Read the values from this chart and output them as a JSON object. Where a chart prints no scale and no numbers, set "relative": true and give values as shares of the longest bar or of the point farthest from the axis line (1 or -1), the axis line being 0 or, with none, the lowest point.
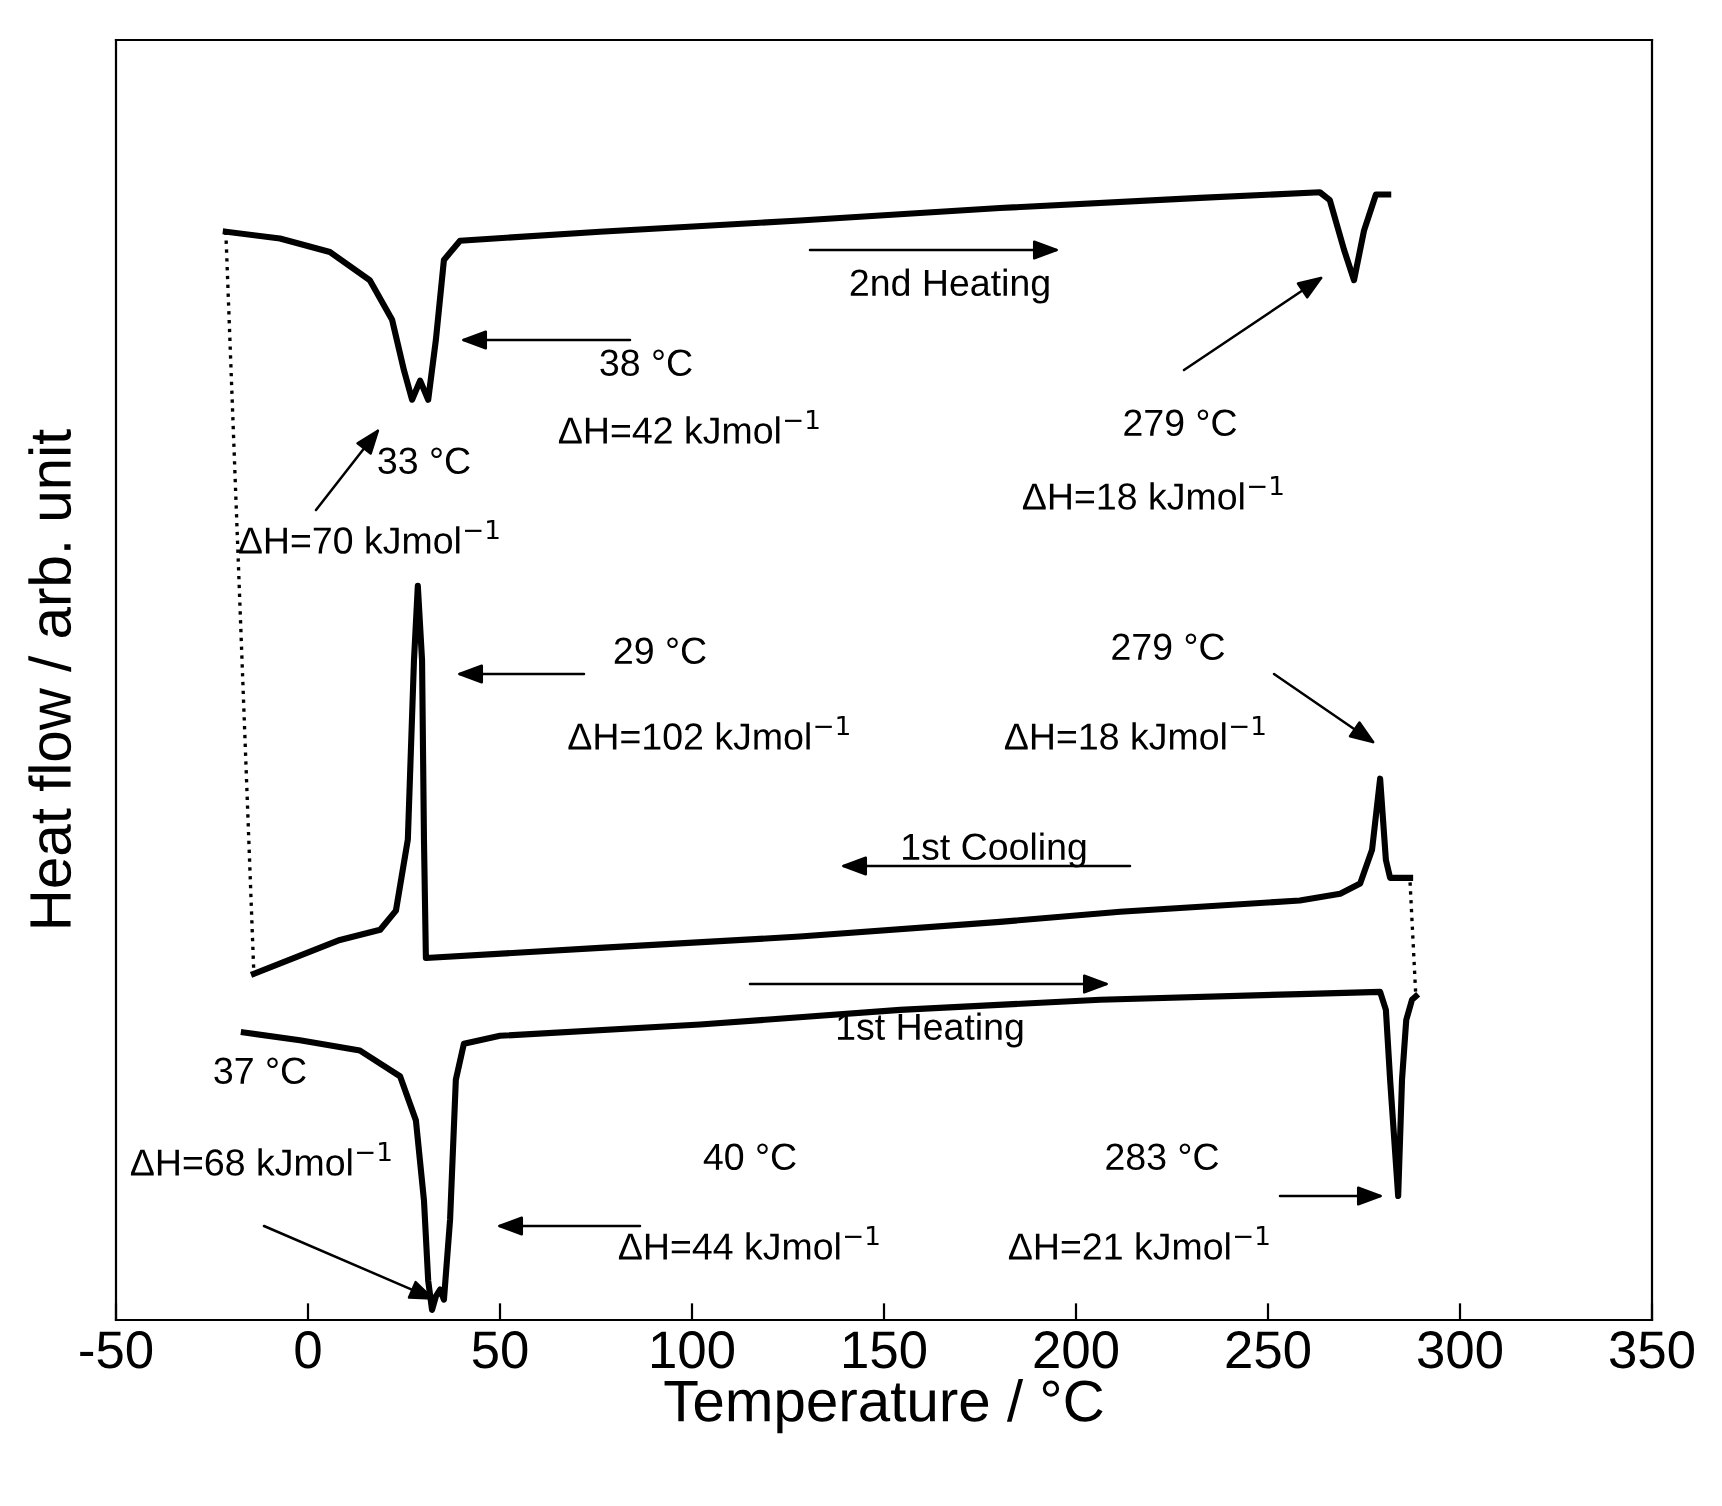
{
  "chart_data": {
    "type": "line",
    "relative": true,
    "xlabel": "Temperature / °C",
    "ylabel": "Heat flow / arb. unit",
    "xlim": [
      -50,
      350
    ],
    "xticks": [
      -50,
      0,
      50,
      100,
      150,
      200,
      250,
      300,
      350
    ],
    "tick_labels": "x",
    "series": [
      {
        "color": "#000000",
        "line_style": "solid",
        "x": [
          -21.4,
          -7.3,
          5.7,
          16.1,
          21.9,
          25.0,
          27.1,
          29.2,
          31.3,
          33.3,
          35.4,
          39.6,
          76.0,
          128.1,
          180.2,
          232.3,
          263.5,
          266.1,
          269.8,
          272.4,
          275.0,
          278.1,
          281.3
        ],
        "values": [
          0.965,
          0.959,
          0.947,
          0.922,
          0.887,
          0.842,
          0.816,
          0.833,
          0.816,
          0.869,
          0.94,
          0.957,
          0.965,
          0.975,
          0.986,
          0.995,
          1.0,
          0.993,
          0.949,
          0.922,
          0.966,
          0.998,
          0.998
        ]
      },
      {
        "color": "#000000",
        "line_style": "solid",
        "x": [
          -14.1,
          8.3,
          18.8,
          22.9,
          26.0,
          27.6,
          28.6,
          29.7,
          30.2,
          30.7,
          76.0,
          128.1,
          180.2,
          211.5,
          258.3,
          268.8,
          274.0,
          277.1,
          279.2,
          280.7,
          281.8,
          287.0
        ],
        "values": [
          0.307,
          0.337,
          0.346,
          0.363,
          0.426,
          0.585,
          0.651,
          0.585,
          0.426,
          0.321,
          0.33,
          0.34,
          0.353,
          0.362,
          0.372,
          0.378,
          0.387,
          0.417,
          0.48,
          0.408,
          0.392,
          0.392
        ]
      },
      {
        "color": "#000000",
        "line_style": "solid",
        "x": [
          -16.7,
          -2.1,
          13.5,
          24.0,
          28.1,
          30.2,
          31.3,
          32.3,
          33.3,
          34.4,
          35.4,
          37.0,
          38.5,
          40.6,
          50.0,
          102.1,
          154.2,
          206.3,
          258.3,
          279.2,
          280.7,
          281.8,
          283.9,
          284.9,
          286.0,
          287.5,
          288.5
        ],
        "values": [
          0.255,
          0.248,
          0.239,
          0.216,
          0.177,
          0.106,
          0.035,
          0.009,
          0.021,
          0.027,
          0.018,
          0.089,
          0.213,
          0.245,
          0.252,
          0.262,
          0.275,
          0.284,
          0.289,
          0.291,
          0.275,
          0.213,
          0.11,
          0.213,
          0.266,
          0.284,
          0.287
        ]
      },
      {
        "color": "#000000",
        "line_style": "dotted",
        "x": [
          -21.4,
          -14.1
        ],
        "values": [
          0.965,
          0.307
        ]
      },
      {
        "color": "#000000",
        "line_style": "dotted",
        "x": [
          287.0,
          288.5
        ],
        "values": [
          0.388,
          0.287
        ]
      }
    ],
    "annotations": [
      "2nd Heating",
      "1st Cooling",
      "1st Heating",
      "33 °C",
      "ΔH=70 kJmol$^{−1}$",
      "38 °C",
      "ΔH=42 kJmol$^{−1}$",
      "279 °C",
      "ΔH=18 kJmol$^{−1}$",
      "29 °C",
      "ΔH=102 kJmol$^{−1}$",
      "279 °C",
      "ΔH=18 kJmol$^{−1}$",
      "37 °C",
      "ΔH=68 kJmol$^{−1}$",
      "40 °C",
      "ΔH=44 kJmol$^{−1}$",
      "283 °C",
      "ΔH=21 kJmol$^{−1}$"
    ]
  }
}
